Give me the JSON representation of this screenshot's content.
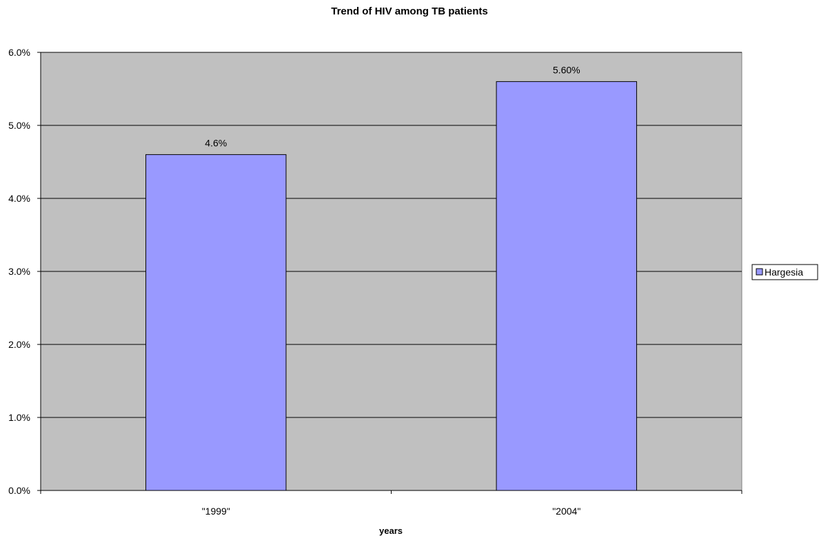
{
  "chart_data": {
    "type": "bar",
    "title": "Trend of HIV among TB patients",
    "xlabel": "years",
    "ylabel": "",
    "categories": [
      "\"1999\"",
      "\"2004\""
    ],
    "series": [
      {
        "name": "Hargesia",
        "values": [
          0.046,
          0.056
        ],
        "labels": [
          "4.6%",
          "5.60%"
        ]
      }
    ],
    "ylim": [
      0,
      0.06
    ],
    "yticks": [
      0,
      0.01,
      0.02,
      0.03,
      0.04,
      0.05,
      0.06
    ],
    "ytick_labels": [
      "0.0%",
      "1.0%",
      "2.0%",
      "3.0%",
      "4.0%",
      "5.0%",
      "6.0%"
    ],
    "grid": true,
    "legend_position": "right",
    "colors": {
      "plot_background": "#c0c0c0",
      "bar_fill": "#9999ff",
      "gridline": "#000000"
    }
  }
}
